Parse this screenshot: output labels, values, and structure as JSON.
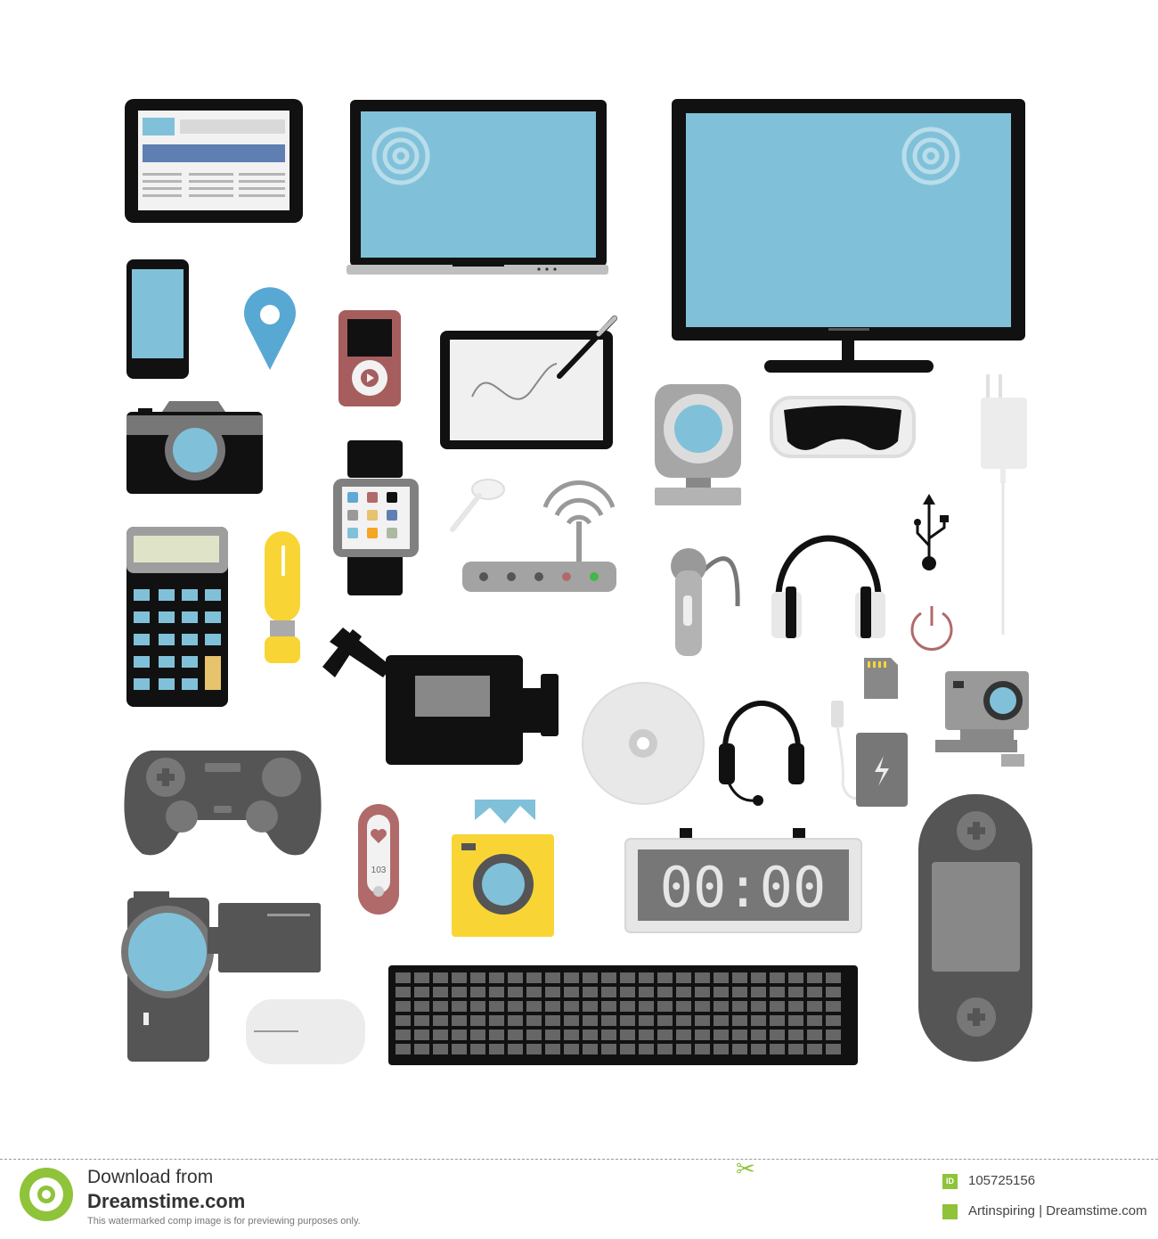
{
  "colors": {
    "screen": "#80c1d9",
    "dark": "#111111",
    "gray": "#666666",
    "light_gray": "#cccccc",
    "yellow": "#f8d534",
    "red": "#b06a6a",
    "green": "#45b649",
    "brand_green": "#8fc33a"
  },
  "icons": [
    "tablet-icon",
    "laptop-icon",
    "monitor-icon",
    "smartphone-icon",
    "map-pin-icon",
    "mp3-player-icon",
    "graphic-tablet-icon",
    "photo-camera-icon",
    "smartwatch-icon",
    "webcam-icon",
    "vr-headset-icon",
    "charger-icon",
    "calculator-icon",
    "usb-stick-icon",
    "earbud-icon",
    "wifi-router-icon",
    "bluetooth-headset-icon",
    "headphones-icon",
    "usb-symbol-icon",
    "power-icon",
    "video-camera-icon",
    "cd-icon",
    "sd-card-icon",
    "action-camera-icon",
    "gamepad-icon",
    "fitness-band-icon",
    "instant-camera-icon",
    "headset-icon",
    "power-bank-icon",
    "digital-clock-icon",
    "handheld-console-icon",
    "camcorder-icon",
    "mouse-icon",
    "keyboard-icon"
  ],
  "art": {
    "clock_display": "00:00",
    "fitness_value": "103"
  },
  "footer": {
    "download_text": "Download from",
    "brand": "Dreamstime.com",
    "disclaimer": "This watermarked comp image is for previewing purposes only.",
    "id_badge": "ID",
    "id_number": "105725156",
    "credit": "Artinspiring | Dreamstime.com"
  }
}
